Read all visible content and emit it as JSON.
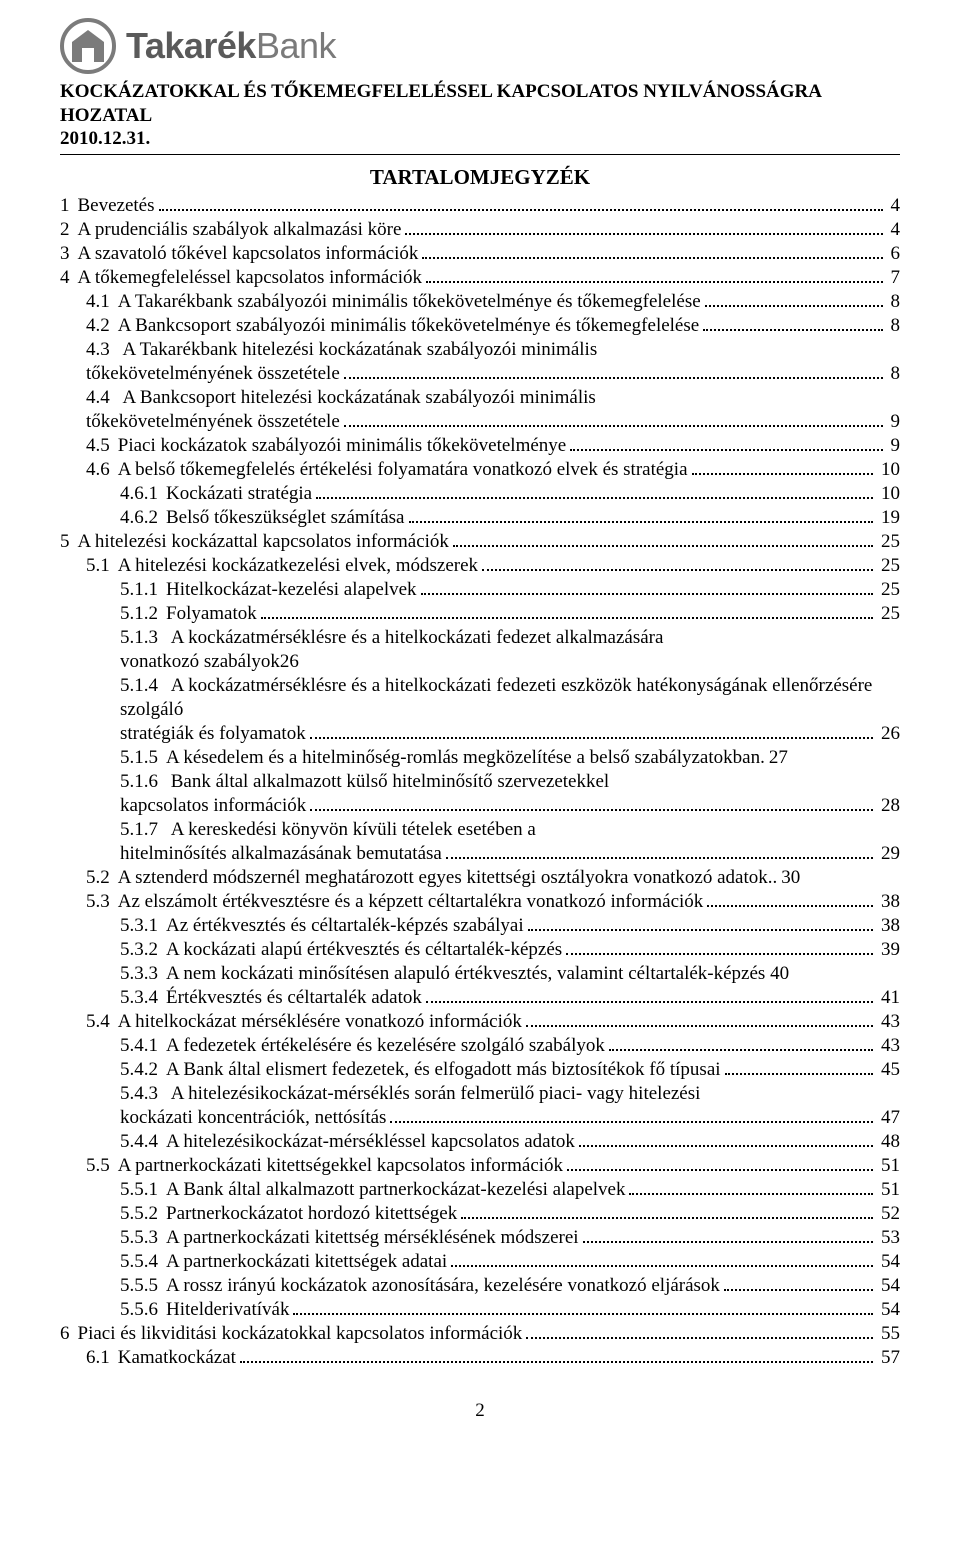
{
  "logo": {
    "brand_bold": "Takarék",
    "brand_thin": "Bank"
  },
  "header": {
    "title": "KOCKÁZATOKKAL ÉS TŐKEMEGFELELÉSSEL KAPCSOLATOS NYILVÁNOSSÁGRA HOZATAL",
    "date": "2010.12.31."
  },
  "toc_title": "TARTALOMJEGYZÉK",
  "page_number": "2",
  "toc": [
    {
      "num": "1",
      "label": "Bevezetés",
      "page": "4",
      "indent": 0
    },
    {
      "num": "2",
      "label": "A prudenciális szabályok alkalmazási köre",
      "page": "4",
      "indent": 0
    },
    {
      "num": "3",
      "label": "A szavatoló tőkével kapcsolatos információk",
      "page": "6",
      "indent": 0
    },
    {
      "num": "4",
      "label": "A tőkemegfeleléssel kapcsolatos információk",
      "page": "7",
      "indent": 0
    },
    {
      "num": "4.1",
      "label": "A Takarékbank szabályozói minimális tőkekövetelménye és tőkemegfelelése",
      "page": "8",
      "indent": 1
    },
    {
      "num": "4.2",
      "label": "A Bankcsoport szabályozói minimális tőkekövetelménye és tőkemegfelelése",
      "page": "8",
      "indent": 1
    },
    {
      "num": "4.3",
      "label": "A Takarékbank hitelezési kockázatának szabályozói minimális tőkekövetelményének összetétele",
      "page": "8",
      "indent": 1,
      "wrap": true
    },
    {
      "num": "4.4",
      "label": "A Bankcsoport hitelezési kockázatának szabályozói minimális tőkekövetelményének összetétele",
      "page": "9",
      "indent": 1,
      "wrap": true
    },
    {
      "num": "4.5",
      "label": "Piaci kockázatok szabályozói minimális tőkekövetelménye",
      "page": "9",
      "indent": 1
    },
    {
      "num": "4.6",
      "label": "A belső tőkemegfelelés értékelési folyamatára vonatkozó elvek és stratégia",
      "page": "10",
      "indent": 1
    },
    {
      "num": "4.6.1",
      "label": "Kockázati stratégia",
      "page": "10",
      "indent": 2
    },
    {
      "num": "4.6.2",
      "label": "Belső tőkeszükséglet számítása",
      "page": "19",
      "indent": 2
    },
    {
      "num": "5",
      "label": "A hitelezési kockázattal kapcsolatos információk",
      "page": "25",
      "indent": 0
    },
    {
      "num": "5.1",
      "label": "A hitelezési kockázatkezelési elvek, módszerek",
      "page": "25",
      "indent": 1
    },
    {
      "num": "5.1.1",
      "label": "Hitelkockázat-kezelési alapelvek",
      "page": "25",
      "indent": 2
    },
    {
      "num": "5.1.2",
      "label": "Folyamatok",
      "page": "25",
      "indent": 2
    },
    {
      "num": "5.1.3",
      "label": "A kockázatmérséklésre és a hitelkockázati fedezet alkalmazására vonatkozó szabályok26",
      "page": "",
      "indent": 2,
      "nopagedots": true,
      "wrap": true
    },
    {
      "num": "5.1.4",
      "label": "A kockázatmérséklésre és a hitelkockázati fedezeti eszközök hatékonyságának ellenőrzésére szolgáló stratégiák és folyamatok",
      "page": "26",
      "indent": 2,
      "wrap": true
    },
    {
      "num": "5.1.5",
      "label": "A késedelem és a hitelminőség-romlás megközelítése a belső szabályzatokban",
      "page": "27",
      "indent": 2,
      "tightdots": true
    },
    {
      "num": "5.1.6",
      "label": "Bank által alkalmazott külső hitelminősítő szervezetekkel kapcsolatos információk",
      "page": "28",
      "indent": 2,
      "wrap": true
    },
    {
      "num": "5.1.7",
      "label": "A kereskedési könyvön kívüli tételek esetében a hitelminősítés alkalmazásának bemutatása",
      "page": "29",
      "indent": 2,
      "wrap": true
    },
    {
      "num": "5.2",
      "label": "A sztenderd módszernél meghatározott egyes kitettségi osztályokra vonatkozó adatok",
      "page": "30",
      "indent": 1,
      "tightdots": true,
      "sep": ".."
    },
    {
      "num": "5.3",
      "label": "Az elszámolt értékvesztésre és a képzett céltartalékra vonatkozó információk",
      "page": "38",
      "indent": 1
    },
    {
      "num": "5.3.1",
      "label": "Az értékvesztés és céltartalék-képzés szabályai",
      "page": "38",
      "indent": 2
    },
    {
      "num": "5.3.2",
      "label": "A kockázati alapú értékvesztés és céltartalék-képzés",
      "page": "39",
      "indent": 2
    },
    {
      "num": "5.3.3",
      "label": "A nem kockázati minősítésen alapuló értékvesztés, valamint céltartalék-képzés",
      "page": "40",
      "indent": 2,
      "nopagedots": true,
      "inlinepage": true
    },
    {
      "num": "5.3.4",
      "label": "Értékvesztés és céltartalék adatok",
      "page": "41",
      "indent": 2
    },
    {
      "num": "5.4",
      "label": "A hitelkockázat mérséklésére vonatkozó információk",
      "page": "43",
      "indent": 1
    },
    {
      "num": "5.4.1",
      "label": "A fedezetek értékelésére és kezelésére szolgáló szabályok",
      "page": "43",
      "indent": 2
    },
    {
      "num": "5.4.2",
      "label": "A Bank által elismert fedezetek, és elfogadott más biztosítékok fő típusai",
      "page": "45",
      "indent": 2
    },
    {
      "num": "5.4.3",
      "label": "A hitelezésikockázat-mérséklés során felmerülő piaci- vagy hitelezési kockázati koncentrációk, nettósítás",
      "page": "47",
      "indent": 2,
      "wrap": true
    },
    {
      "num": "5.4.4",
      "label": "A hitelezésikockázat-mérsékléssel kapcsolatos adatok",
      "page": "48",
      "indent": 2
    },
    {
      "num": "5.5",
      "label": "A partnerkockázati kitettségekkel kapcsolatos információk",
      "page": "51",
      "indent": 1
    },
    {
      "num": "5.5.1",
      "label": "A Bank által alkalmazott partnerkockázat-kezelési alapelvek",
      "page": "51",
      "indent": 2
    },
    {
      "num": "5.5.2",
      "label": "Partnerkockázatot hordozó kitettségek",
      "page": "52",
      "indent": 2
    },
    {
      "num": "5.5.3",
      "label": "A partnerkockázati kitettség mérséklésének módszerei",
      "page": "53",
      "indent": 2
    },
    {
      "num": "5.5.4",
      "label": "A partnerkockázati kitettségek adatai",
      "page": "54",
      "indent": 2
    },
    {
      "num": "5.5.5",
      "label": "A rossz irányú kockázatok azonosítására, kezelésére vonatkozó eljárások",
      "page": "54",
      "indent": 2
    },
    {
      "num": "5.5.6",
      "label": "Hitelderivatívák",
      "page": "54",
      "indent": 2
    },
    {
      "num": "6",
      "label": "Piaci és likviditási kockázatokkal kapcsolatos információk",
      "page": "55",
      "indent": 0
    },
    {
      "num": "6.1",
      "label": "Kamatkockázat",
      "page": "57",
      "indent": 1
    }
  ]
}
